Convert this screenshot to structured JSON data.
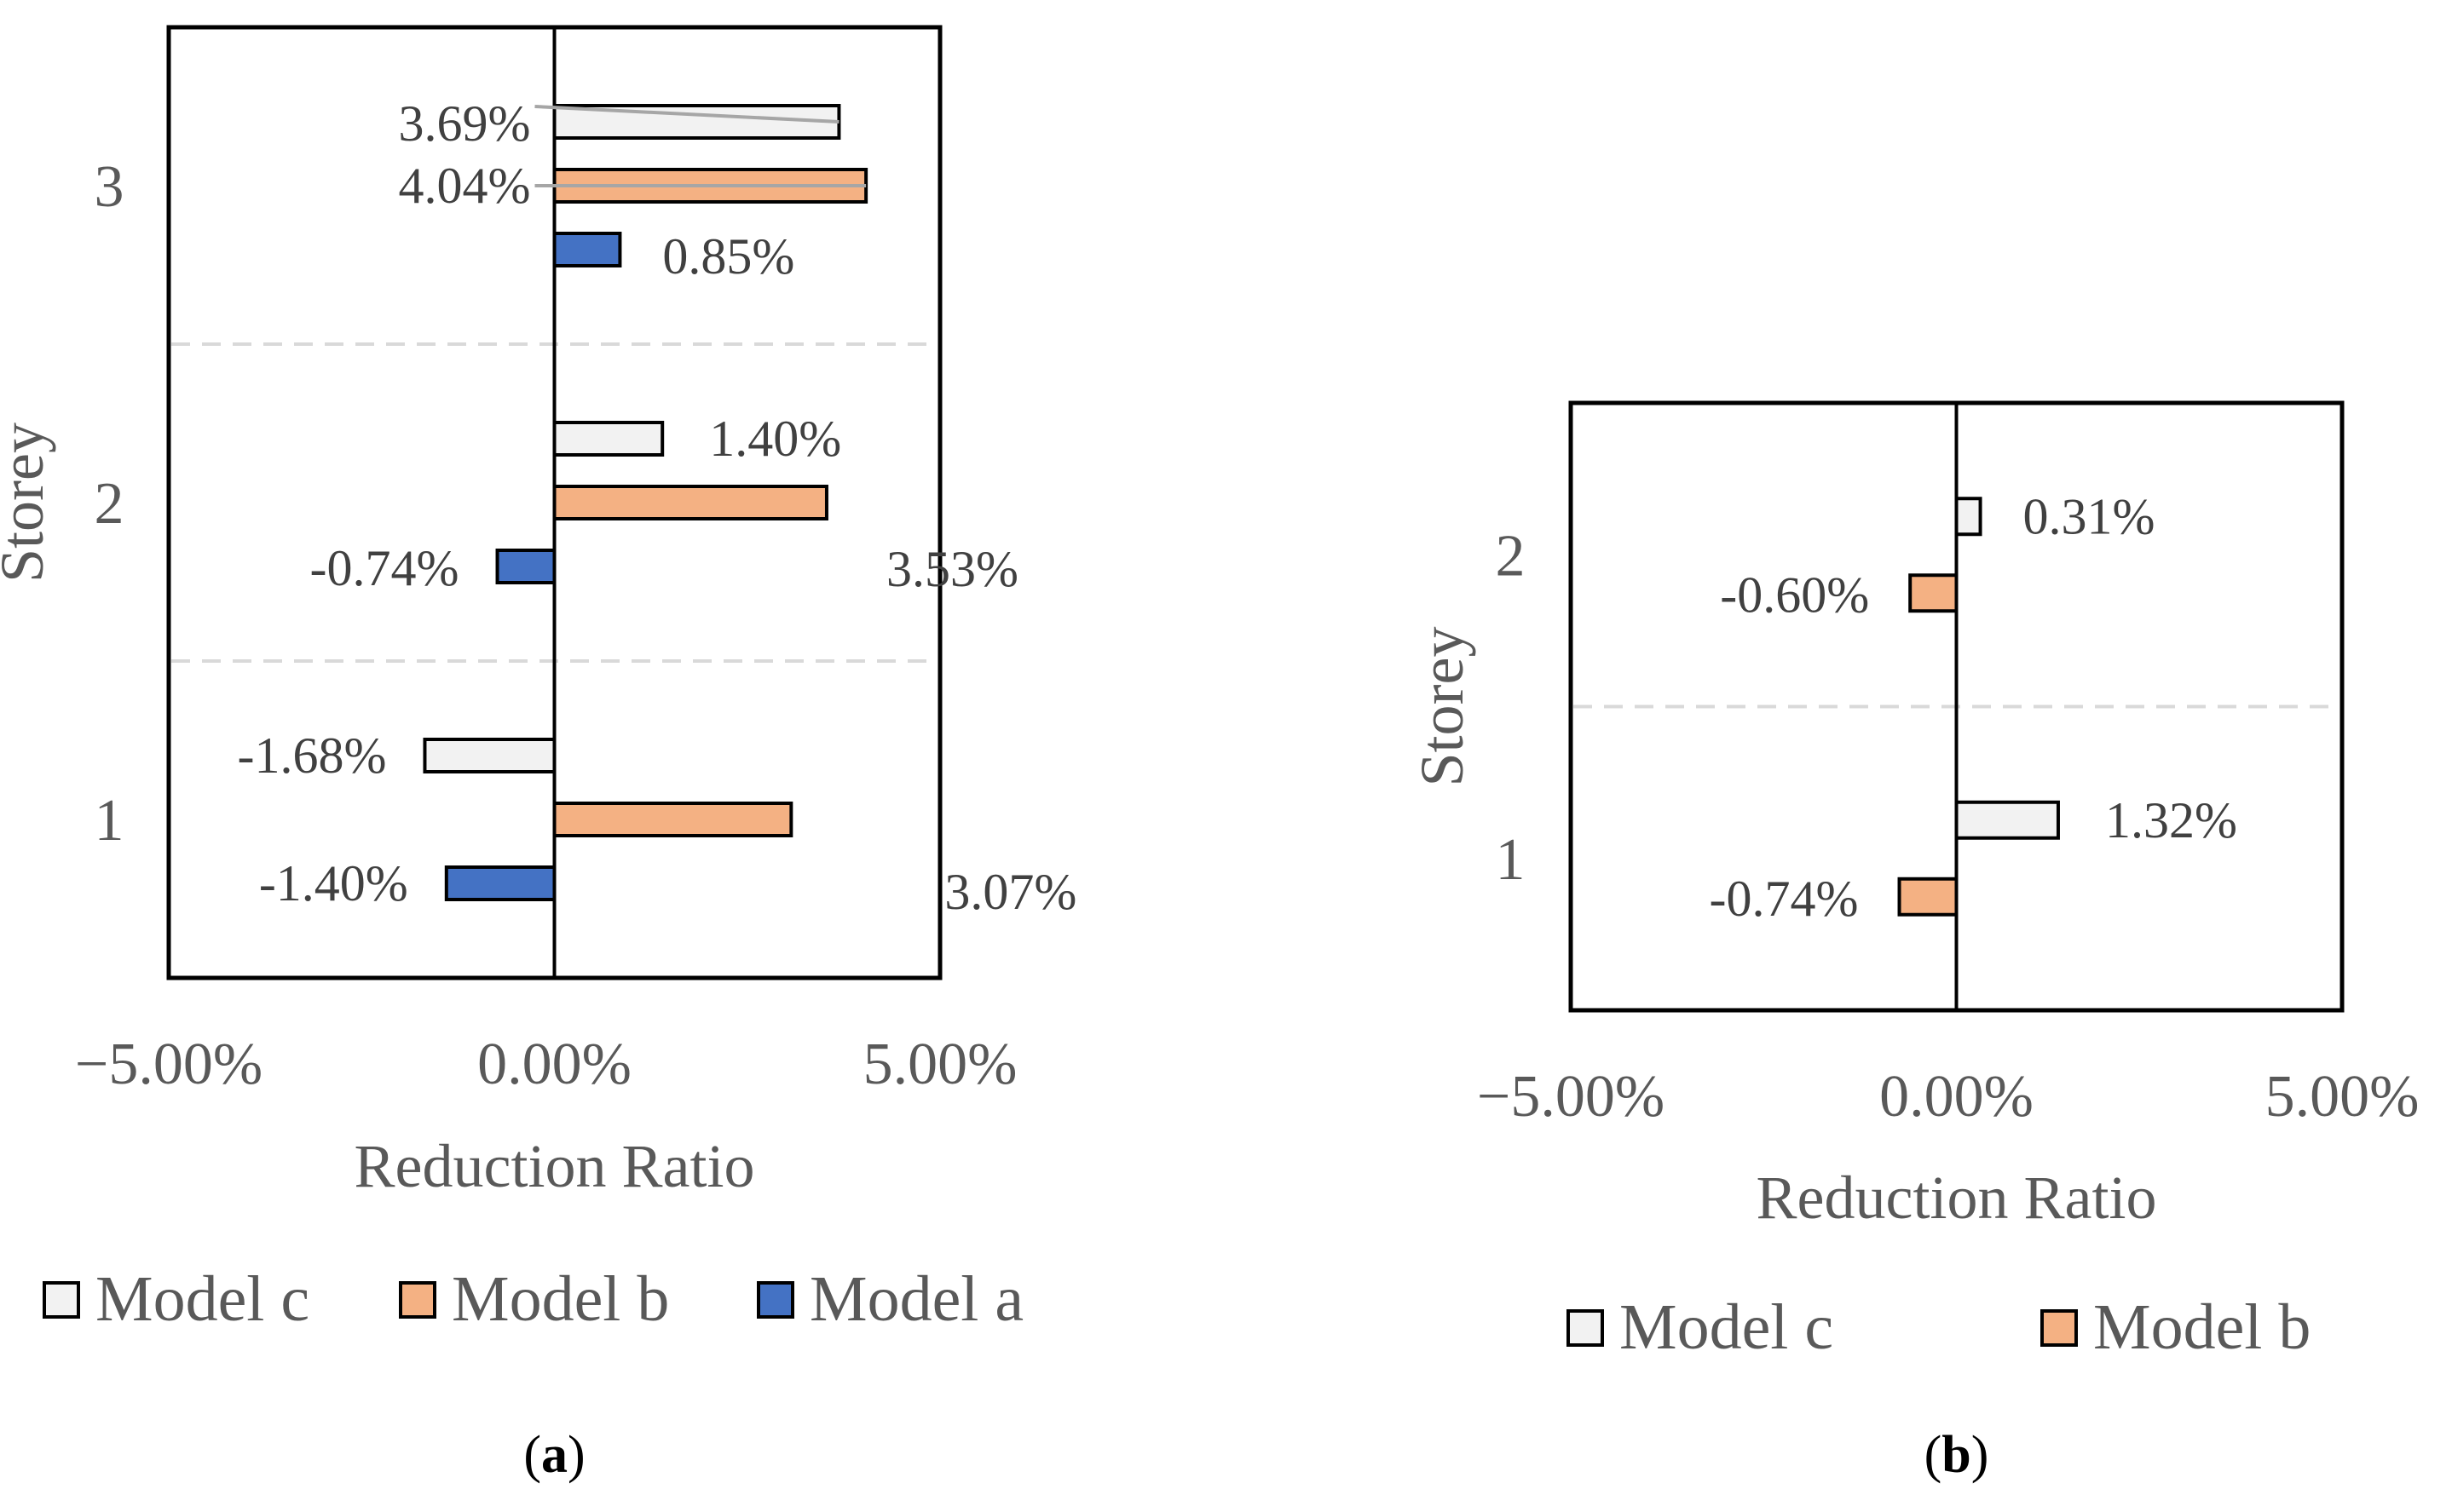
{
  "chart_data": [
    {
      "type": "bar",
      "orientation": "horizontal",
      "panel_label": {
        "open": "(",
        "letter": "a",
        "close": ")"
      },
      "categories": [
        "1",
        "2",
        "3"
      ],
      "series": [
        {
          "name": "Model c",
          "color": "#F2F2F2",
          "values": [
            -1.68,
            1.4,
            3.69
          ],
          "labels": [
            "-1.68%",
            "1.40%",
            "3.69%"
          ]
        },
        {
          "name": "Model b",
          "color": "#F4B183",
          "values": [
            3.07,
            3.53,
            4.04
          ],
          "labels": [
            "3.07%",
            "3.53%",
            "4.04%"
          ]
        },
        {
          "name": "Model a",
          "color": "#4472C4",
          "values": [
            -1.4,
            -0.74,
            0.85
          ],
          "labels": [
            "-1.40%",
            "-0.74%",
            "0.85%"
          ]
        }
      ],
      "xlabel": "Reduction Ratio",
      "ylabel": "Storey",
      "xlim": [
        -5,
        5
      ],
      "x_ticks": [
        -5,
        0,
        5
      ],
      "x_tick_labels": [
        "−5.00%",
        "0.00%",
        "5.00%"
      ],
      "legend": [
        "Model c",
        "Model b",
        "Model a"
      ],
      "legend_position": "bottom"
    },
    {
      "type": "bar",
      "orientation": "horizontal",
      "panel_label": {
        "open": "(",
        "letter": "b",
        "close": ")"
      },
      "categories": [
        "1",
        "2"
      ],
      "series": [
        {
          "name": "Model c",
          "color": "#F2F2F2",
          "values": [
            1.32,
            0.31
          ],
          "labels": [
            "1.32%",
            "0.31%"
          ]
        },
        {
          "name": "Model b",
          "color": "#F4B183",
          "values": [
            -0.74,
            -0.6
          ],
          "labels": [
            "-0.74%",
            "-0.60%"
          ]
        }
      ],
      "xlabel": "Reduction Ratio",
      "ylabel": "Storey",
      "xlim": [
        -5,
        5
      ],
      "x_ticks": [
        -5,
        0,
        5
      ],
      "x_tick_labels": [
        "−5.00%",
        "0.00%",
        "5.00%"
      ],
      "legend": [
        "Model c",
        "Model b"
      ],
      "legend_position": "bottom"
    }
  ]
}
